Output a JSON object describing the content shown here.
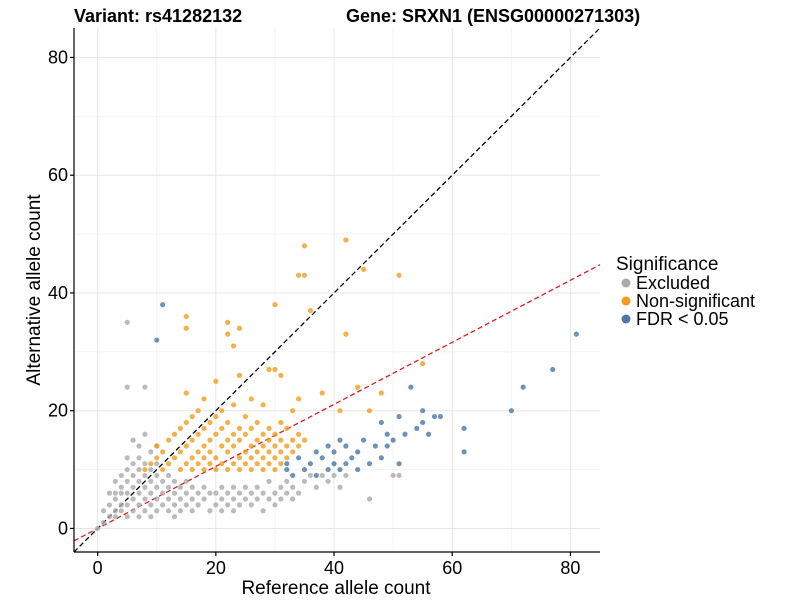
{
  "chart_data": {
    "type": "scatter",
    "title_left": "Variant: rs41282132",
    "title_right": "Gene: SRXN1 (ENSG00000271303)",
    "xlabel": "Reference allele count",
    "ylabel": "Alternative allele count",
    "xlim": [
      -4,
      85
    ],
    "ylim": [
      -4,
      85
    ],
    "xticks": [
      0,
      20,
      40,
      60,
      80
    ],
    "yticks": [
      0,
      20,
      40,
      60,
      80
    ],
    "grid": true,
    "reference_lines": [
      {
        "name": "identity-line",
        "slope": 1.0,
        "intercept": 0,
        "color": "#000000",
        "style": "dashed"
      },
      {
        "name": "fitted-line",
        "slope": 0.527,
        "intercept": 0,
        "color": "#e41a1c",
        "style": "dashed"
      }
    ],
    "legend": {
      "title": "Significance",
      "position": "right",
      "entries": [
        {
          "label": "Excluded",
          "color": "#aaaaaa"
        },
        {
          "label": "Non-significant",
          "color": "#f39c1a"
        },
        {
          "label": "FDR < 0.05",
          "color": "#4a78a8"
        }
      ]
    },
    "series": [
      {
        "name": "Excluded",
        "color": "#aaaaaa",
        "points": [
          [
            0,
            0
          ],
          [
            1,
            1
          ],
          [
            1,
            3
          ],
          [
            2,
            2
          ],
          [
            2,
            4
          ],
          [
            2,
            6
          ],
          [
            3,
            2
          ],
          [
            3,
            3
          ],
          [
            3,
            5
          ],
          [
            3,
            6
          ],
          [
            3,
            8
          ],
          [
            4,
            3
          ],
          [
            4,
            4
          ],
          [
            4,
            6
          ],
          [
            4,
            7
          ],
          [
            4,
            9
          ],
          [
            5,
            2
          ],
          [
            5,
            4
          ],
          [
            5,
            6
          ],
          [
            5,
            8
          ],
          [
            5,
            10
          ],
          [
            5,
            12
          ],
          [
            5,
            24
          ],
          [
            5,
            35
          ],
          [
            6,
            3
          ],
          [
            6,
            5
          ],
          [
            6,
            7
          ],
          [
            6,
            9
          ],
          [
            6,
            11
          ],
          [
            6,
            15
          ],
          [
            7,
            2
          ],
          [
            7,
            4
          ],
          [
            7,
            6
          ],
          [
            7,
            8
          ],
          [
            7,
            10
          ],
          [
            7,
            12
          ],
          [
            7,
            14
          ],
          [
            8,
            3
          ],
          [
            8,
            5
          ],
          [
            8,
            7
          ],
          [
            8,
            9
          ],
          [
            8,
            11
          ],
          [
            8,
            16
          ],
          [
            8,
            24
          ],
          [
            9,
            2
          ],
          [
            9,
            4
          ],
          [
            9,
            6
          ],
          [
            9,
            8
          ],
          [
            9,
            10
          ],
          [
            9,
            13
          ],
          [
            10,
            3
          ],
          [
            10,
            5
          ],
          [
            10,
            7
          ],
          [
            10,
            9
          ],
          [
            10,
            11
          ],
          [
            10,
            14
          ],
          [
            11,
            4
          ],
          [
            11,
            6
          ],
          [
            11,
            8
          ],
          [
            12,
            3
          ],
          [
            12,
            5
          ],
          [
            12,
            7
          ],
          [
            12,
            9
          ],
          [
            13,
            2
          ],
          [
            13,
            4
          ],
          [
            13,
            6
          ],
          [
            13,
            8
          ],
          [
            14,
            3
          ],
          [
            14,
            5
          ],
          [
            14,
            7
          ],
          [
            15,
            4
          ],
          [
            15,
            6
          ],
          [
            15,
            8
          ],
          [
            16,
            3
          ],
          [
            16,
            5
          ],
          [
            16,
            7
          ],
          [
            17,
            4
          ],
          [
            17,
            6
          ],
          [
            18,
            5
          ],
          [
            18,
            7
          ],
          [
            19,
            3
          ],
          [
            19,
            6
          ],
          [
            20,
            4
          ],
          [
            20,
            6
          ],
          [
            21,
            3
          ],
          [
            21,
            5
          ],
          [
            21,
            7
          ],
          [
            22,
            4
          ],
          [
            22,
            6
          ],
          [
            23,
            3
          ],
          [
            23,
            5
          ],
          [
            23,
            7
          ],
          [
            24,
            4
          ],
          [
            24,
            6
          ],
          [
            25,
            5
          ],
          [
            25,
            7
          ],
          [
            26,
            4
          ],
          [
            26,
            6
          ],
          [
            27,
            5
          ],
          [
            27,
            7
          ],
          [
            28,
            3
          ],
          [
            28,
            6
          ],
          [
            29,
            5
          ],
          [
            29,
            8
          ],
          [
            30,
            4
          ],
          [
            30,
            6
          ],
          [
            31,
            5
          ],
          [
            31,
            7
          ],
          [
            32,
            6
          ],
          [
            32,
            8
          ],
          [
            33,
            5
          ],
          [
            33,
            7
          ],
          [
            34,
            6
          ],
          [
            35,
            8
          ],
          [
            36,
            9
          ],
          [
            37,
            7
          ],
          [
            38,
            9
          ],
          [
            39,
            8
          ],
          [
            40,
            9
          ],
          [
            41,
            7
          ],
          [
            42,
            9
          ],
          [
            46,
            5
          ],
          [
            50,
            9
          ],
          [
            51,
            9
          ]
        ]
      },
      {
        "name": "Non-significant",
        "color": "#f39c1a",
        "points": [
          [
            8,
            10
          ],
          [
            9,
            11
          ],
          [
            10,
            12
          ],
          [
            10,
            14
          ],
          [
            11,
            10
          ],
          [
            11,
            13
          ],
          [
            12,
            11
          ],
          [
            12,
            15
          ],
          [
            13,
            12
          ],
          [
            13,
            16
          ],
          [
            14,
            10
          ],
          [
            14,
            13
          ],
          [
            14,
            17
          ],
          [
            15,
            11
          ],
          [
            15,
            14
          ],
          [
            15,
            18
          ],
          [
            15,
            23
          ],
          [
            15,
            34
          ],
          [
            15,
            36
          ],
          [
            16,
            10
          ],
          [
            16,
            12
          ],
          [
            16,
            15
          ],
          [
            16,
            19
          ],
          [
            17,
            11
          ],
          [
            17,
            13
          ],
          [
            17,
            16
          ],
          [
            17,
            20
          ],
          [
            18,
            10
          ],
          [
            18,
            12
          ],
          [
            18,
            14
          ],
          [
            18,
            17
          ],
          [
            18,
            22
          ],
          [
            19,
            11
          ],
          [
            19,
            13
          ],
          [
            19,
            15
          ],
          [
            19,
            18
          ],
          [
            20,
            10
          ],
          [
            20,
            12
          ],
          [
            20,
            16
          ],
          [
            20,
            19
          ],
          [
            20,
            25
          ],
          [
            21,
            11
          ],
          [
            21,
            14
          ],
          [
            21,
            17
          ],
          [
            21,
            20
          ],
          [
            22,
            10
          ],
          [
            22,
            13
          ],
          [
            22,
            15
          ],
          [
            22,
            18
          ],
          [
            22,
            33
          ],
          [
            22,
            35
          ],
          [
            23,
            11
          ],
          [
            23,
            14
          ],
          [
            23,
            16
          ],
          [
            23,
            21
          ],
          [
            23,
            31
          ],
          [
            24,
            10
          ],
          [
            24,
            12
          ],
          [
            24,
            15
          ],
          [
            24,
            17
          ],
          [
            24,
            26
          ],
          [
            24,
            34
          ],
          [
            25,
            11
          ],
          [
            25,
            13
          ],
          [
            25,
            16
          ],
          [
            25,
            19
          ],
          [
            26,
            10
          ],
          [
            26,
            12
          ],
          [
            26,
            14
          ],
          [
            26,
            17
          ],
          [
            26,
            22
          ],
          [
            27,
            11
          ],
          [
            27,
            13
          ],
          [
            27,
            15
          ],
          [
            27,
            18
          ],
          [
            28,
            10
          ],
          [
            28,
            12
          ],
          [
            28,
            14
          ],
          [
            28,
            16
          ],
          [
            28,
            21
          ],
          [
            29,
            11
          ],
          [
            29,
            13
          ],
          [
            29,
            15
          ],
          [
            29,
            17
          ],
          [
            29,
            27
          ],
          [
            30,
            10
          ],
          [
            30,
            12
          ],
          [
            30,
            14
          ],
          [
            30,
            16
          ],
          [
            30,
            27
          ],
          [
            30,
            38
          ],
          [
            31,
            11
          ],
          [
            31,
            13
          ],
          [
            31,
            15
          ],
          [
            31,
            18
          ],
          [
            31,
            26
          ],
          [
            32,
            12
          ],
          [
            32,
            14
          ],
          [
            32,
            17
          ],
          [
            33,
            13
          ],
          [
            33,
            15
          ],
          [
            33,
            20
          ],
          [
            34,
            14
          ],
          [
            34,
            16
          ],
          [
            34,
            22
          ],
          [
            34,
            43
          ],
          [
            35,
            15
          ],
          [
            35,
            43
          ],
          [
            35,
            48
          ],
          [
            36,
            37
          ],
          [
            38,
            23
          ],
          [
            41,
            20
          ],
          [
            42,
            33
          ],
          [
            42,
            49
          ],
          [
            44,
            24
          ],
          [
            45,
            44
          ],
          [
            46,
            20
          ],
          [
            48,
            23
          ],
          [
            51,
            43
          ],
          [
            55,
            28
          ]
        ]
      },
      {
        "name": "FDR < 0.05",
        "color": "#4a78a8",
        "points": [
          [
            10,
            32
          ],
          [
            11,
            38
          ],
          [
            32,
            10
          ],
          [
            32,
            11
          ],
          [
            33,
            9
          ],
          [
            34,
            12
          ],
          [
            35,
            10
          ],
          [
            36,
            11
          ],
          [
            37,
            9
          ],
          [
            37,
            13
          ],
          [
            38,
            12
          ],
          [
            39,
            10
          ],
          [
            39,
            14
          ],
          [
            40,
            11
          ],
          [
            40,
            13
          ],
          [
            41,
            10
          ],
          [
            41,
            15
          ],
          [
            42,
            11
          ],
          [
            42,
            14
          ],
          [
            43,
            12
          ],
          [
            44,
            10
          ],
          [
            44,
            13
          ],
          [
            45,
            15
          ],
          [
            46,
            11
          ],
          [
            47,
            14
          ],
          [
            48,
            12
          ],
          [
            48,
            18
          ],
          [
            49,
            14
          ],
          [
            49,
            16
          ],
          [
            50,
            15
          ],
          [
            51,
            11
          ],
          [
            51,
            19
          ],
          [
            52,
            16
          ],
          [
            53,
            24
          ],
          [
            54,
            17
          ],
          [
            55,
            18
          ],
          [
            55,
            20
          ],
          [
            56,
            16
          ],
          [
            57,
            19
          ],
          [
            58,
            19
          ],
          [
            62,
            13
          ],
          [
            62,
            17
          ],
          [
            70,
            20
          ],
          [
            72,
            24
          ],
          [
            77,
            27
          ],
          [
            81,
            33
          ]
        ]
      }
    ]
  }
}
